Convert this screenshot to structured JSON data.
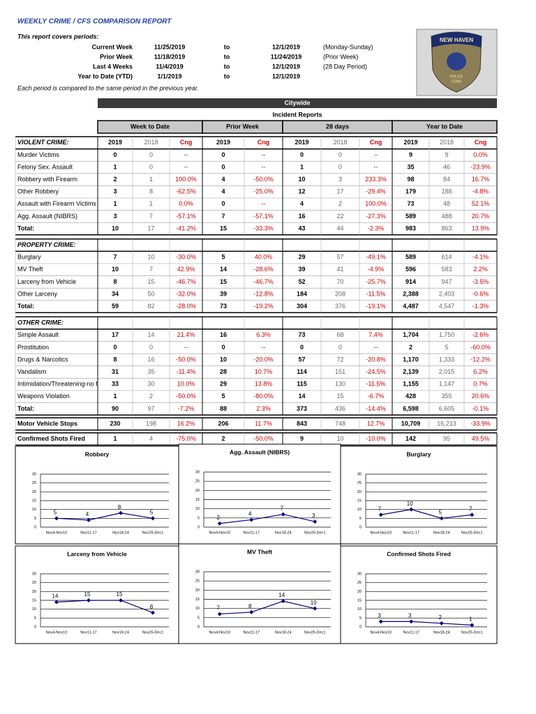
{
  "header": {
    "title": "WEEKLY CRIME / CFS COMPARISON REPORT",
    "periods_label": "This report covers periods:",
    "periods": [
      {
        "label": "Current Week",
        "start": "11/25/2019",
        "to": "to",
        "end": "12/1/2019",
        "note": "(Monday-Sunday)"
      },
      {
        "label": "Prior Week",
        "start": "11/18/2019",
        "to": "to",
        "end": "11/24/2019",
        "note": "(Prior Week)"
      },
      {
        "label": "Last 4 Weeks",
        "start": "11/4/2019",
        "to": "to",
        "end": "12/1/2019",
        "note": "(28 Day Period)"
      },
      {
        "label": "Year to Date (YTD)",
        "start": "1/1/2019",
        "to": "to",
        "end": "12/1/2019"
      }
    ],
    "note": "Each period is compared to the same period in the previous year."
  },
  "logo": {
    "top": "NEW HAVEN",
    "bottom": [
      "POLICE",
      "CONN."
    ]
  },
  "table": {
    "scope": "Citywide",
    "subtitle": "Incident Reports",
    "groups": [
      "Week to Date",
      "Prior Week",
      "28 days",
      "Year to Date"
    ],
    "columns": [
      "2019",
      "2018",
      "Cng",
      "2019",
      "Cng",
      "2019",
      "2018",
      "Cng",
      "2019",
      "2018",
      "Cng"
    ],
    "sections": [
      {
        "title": "VIOLENT CRIME:",
        "rows": [
          {
            "label": "Murder Victims",
            "values": [
              "0",
              "0",
              "--",
              "0",
              "--",
              "0",
              "0",
              "--",
              "9",
              "9",
              "0.0%"
            ]
          },
          {
            "label": "Felony Sex. Assault",
            "values": [
              "1",
              "0",
              "--",
              "0",
              "--",
              "1",
              "0",
              "--",
              "35",
              "46",
              "-23.9%"
            ]
          },
          {
            "label": "Robbery with Firearm",
            "values": [
              "2",
              "1",
              "100.0%",
              "4",
              "-50.0%",
              "10",
              "3",
              "233.3%",
              "98",
              "84",
              "16.7%"
            ]
          },
          {
            "label": "Other Robbery",
            "values": [
              "3",
              "8",
              "-62.5%",
              "4",
              "-25.0%",
              "12",
              "17",
              "-29.4%",
              "179",
              "188",
              "-4.8%"
            ]
          },
          {
            "label": "Assault with Firearm Victims",
            "values": [
              "1",
              "1",
              "0.0%",
              "0",
              "--",
              "4",
              "2",
              "100.0%",
              "73",
              "48",
              "52.1%"
            ]
          },
          {
            "label": "Agg. Assault (NIBRS)",
            "values": [
              "3",
              "7",
              "-57.1%",
              "7",
              "-57.1%",
              "16",
              "22",
              "-27.3%",
              "589",
              "488",
              "20.7%"
            ]
          }
        ],
        "total": {
          "label": "Total:",
          "values": [
            "10",
            "17",
            "-41.2%",
            "15",
            "-33.3%",
            "43",
            "44",
            "-2.3%",
            "983",
            "863",
            "13.9%"
          ]
        }
      },
      {
        "title": "PROPERTY CRIME:",
        "rows": [
          {
            "label": "Burglary",
            "values": [
              "7",
              "10",
              "-30.0%",
              "5",
              "40.0%",
              "29",
              "57",
              "-49.1%",
              "589",
              "614",
              "-4.1%"
            ]
          },
          {
            "label": "MV Theft",
            "values": [
              "10",
              "7",
              "42.9%",
              "14",
              "-28.6%",
              "39",
              "41",
              "-4.9%",
              "596",
              "583",
              "2.2%"
            ]
          },
          {
            "label": "Larceny from Vehicle",
            "values": [
              "8",
              "15",
              "-46.7%",
              "15",
              "-46.7%",
              "52",
              "70",
              "-25.7%",
              "914",
              "947",
              "-3.5%"
            ]
          },
          {
            "label": "Other Larceny",
            "values": [
              "34",
              "50",
              "-32.0%",
              "39",
              "-12.8%",
              "184",
              "208",
              "-11.5%",
              "2,388",
              "2,403",
              "-0.6%"
            ]
          }
        ],
        "total": {
          "label": "Total:",
          "values": [
            "59",
            "82",
            "-28.0%",
            "73",
            "-19.2%",
            "304",
            "376",
            "-19.1%",
            "4,487",
            "4,547",
            "-1.3%"
          ]
        }
      },
      {
        "title": "OTHER CRIME:",
        "rows": [
          {
            "label": "Simple Assault",
            "values": [
              "17",
              "14",
              "21.4%",
              "16",
              "6.3%",
              "73",
              "68",
              "7.4%",
              "1,704",
              "1,750",
              "-2.6%"
            ]
          },
          {
            "label": "Prostitution",
            "values": [
              "0",
              "0",
              "--",
              "0",
              "--",
              "0",
              "0",
              "--",
              "2",
              "5",
              "-60.0%"
            ]
          },
          {
            "label": "Drugs & Narcotics",
            "values": [
              "8",
              "16",
              "-50.0%",
              "10",
              "-20.0%",
              "57",
              "72",
              "-20.8%",
              "1,170",
              "1,333",
              "-12.2%"
            ]
          },
          {
            "label": "Vandalism",
            "values": [
              "31",
              "35",
              "-11.4%",
              "28",
              "10.7%",
              "114",
              "151",
              "-24.5%",
              "2,139",
              "2,015",
              "6.2%"
            ]
          },
          {
            "label": "Intimidation/Threatening-no f",
            "values": [
              "33",
              "30",
              "10.0%",
              "29",
              "13.8%",
              "115",
              "130",
              "-11.5%",
              "1,155",
              "1,147",
              "0.7%"
            ]
          },
          {
            "label": "Weapons Violation",
            "values": [
              "1",
              "2",
              "-50.0%",
              "5",
              "-80.0%",
              "14",
              "15",
              "-6.7%",
              "428",
              "355",
              "20.6%"
            ]
          }
        ],
        "total": {
          "label": "Total:",
          "values": [
            "90",
            "97",
            "-7.2%",
            "88",
            "2.3%",
            "373",
            "436",
            "-14.4%",
            "6,598",
            "6,605",
            "-0.1%"
          ]
        }
      }
    ],
    "extra_rows": [
      {
        "label": "Motor Vehicle Stops",
        "values": [
          "230",
          "198",
          "16.2%",
          "206",
          "11.7%",
          "843",
          "748",
          "12.7%",
          "10,709",
          "16,213",
          "-33.9%"
        ]
      },
      {
        "label": "Confirmed Shots Fired",
        "values": [
          "1",
          "4",
          "-75.0%",
          "2",
          "-50.0%",
          "9",
          "10",
          "-10.0%",
          "142",
          "95",
          "49.5%"
        ]
      }
    ]
  },
  "chart_data": [
    {
      "type": "line",
      "title": "Robbery",
      "categories": [
        "Nov4-Nov10",
        "Nov11-17",
        "Nov18-24",
        "Nov25-Dec1"
      ],
      "values": [
        5,
        4,
        8,
        5
      ],
      "color": "#000080",
      "ylim": [
        0,
        30
      ],
      "yticks": [
        0,
        5,
        10,
        15,
        20,
        25,
        30
      ],
      "grid": true
    },
    {
      "type": "line",
      "title": "Agg. Assault (NIBRS)",
      "categories": [
        "Nov4-Nov10",
        "Nov11-17",
        "Nov18-24",
        "Nov25-Dec1"
      ],
      "values": [
        2,
        4,
        7,
        3
      ],
      "color": "#000080",
      "ylim": [
        0,
        30
      ],
      "yticks": [
        0,
        5,
        10,
        15,
        20,
        25,
        30
      ],
      "grid": true
    },
    {
      "type": "line",
      "title": "Burglary",
      "categories": [
        "Nov4-Nov10",
        "Nov11-17",
        "Nov18-24",
        "Nov25-Dec1"
      ],
      "values": [
        7,
        10,
        5,
        7
      ],
      "color": "#000080",
      "ylim": [
        0,
        30
      ],
      "yticks": [
        0,
        5,
        10,
        15,
        20,
        25,
        30
      ],
      "grid": true
    },
    {
      "type": "line",
      "title": "Larceny from Vehicle",
      "categories": [
        "Nov4-Nov10",
        "Nov11-17",
        "Nov18-24",
        "Nov25-Dec1"
      ],
      "values": [
        14,
        15,
        15,
        8
      ],
      "color": "#000080",
      "ylim": [
        0,
        30
      ],
      "yticks": [
        0,
        5,
        10,
        15,
        20,
        25,
        30
      ],
      "grid": true
    },
    {
      "type": "line",
      "title": "MV Theft",
      "categories": [
        "Nov4-Nov10",
        "Nov11-17",
        "Nov18-24",
        "Nov25-Dec1"
      ],
      "values": [
        7,
        8,
        14,
        10
      ],
      "color": "#000080",
      "ylim": [
        0,
        30
      ],
      "yticks": [
        0,
        5,
        10,
        15,
        20,
        25,
        30
      ],
      "grid": true
    },
    {
      "type": "line",
      "title": "Confirmed Shots Fired",
      "categories": [
        "Nov4-Nov10",
        "Nov11-17",
        "Nov18-24",
        "Nov25-Dec1"
      ],
      "values": [
        3,
        3,
        2,
        1
      ],
      "color": "#000080",
      "ylim": [
        0,
        30
      ],
      "yticks": [
        0,
        5,
        10,
        15,
        20,
        25,
        30
      ],
      "grid": true
    }
  ]
}
